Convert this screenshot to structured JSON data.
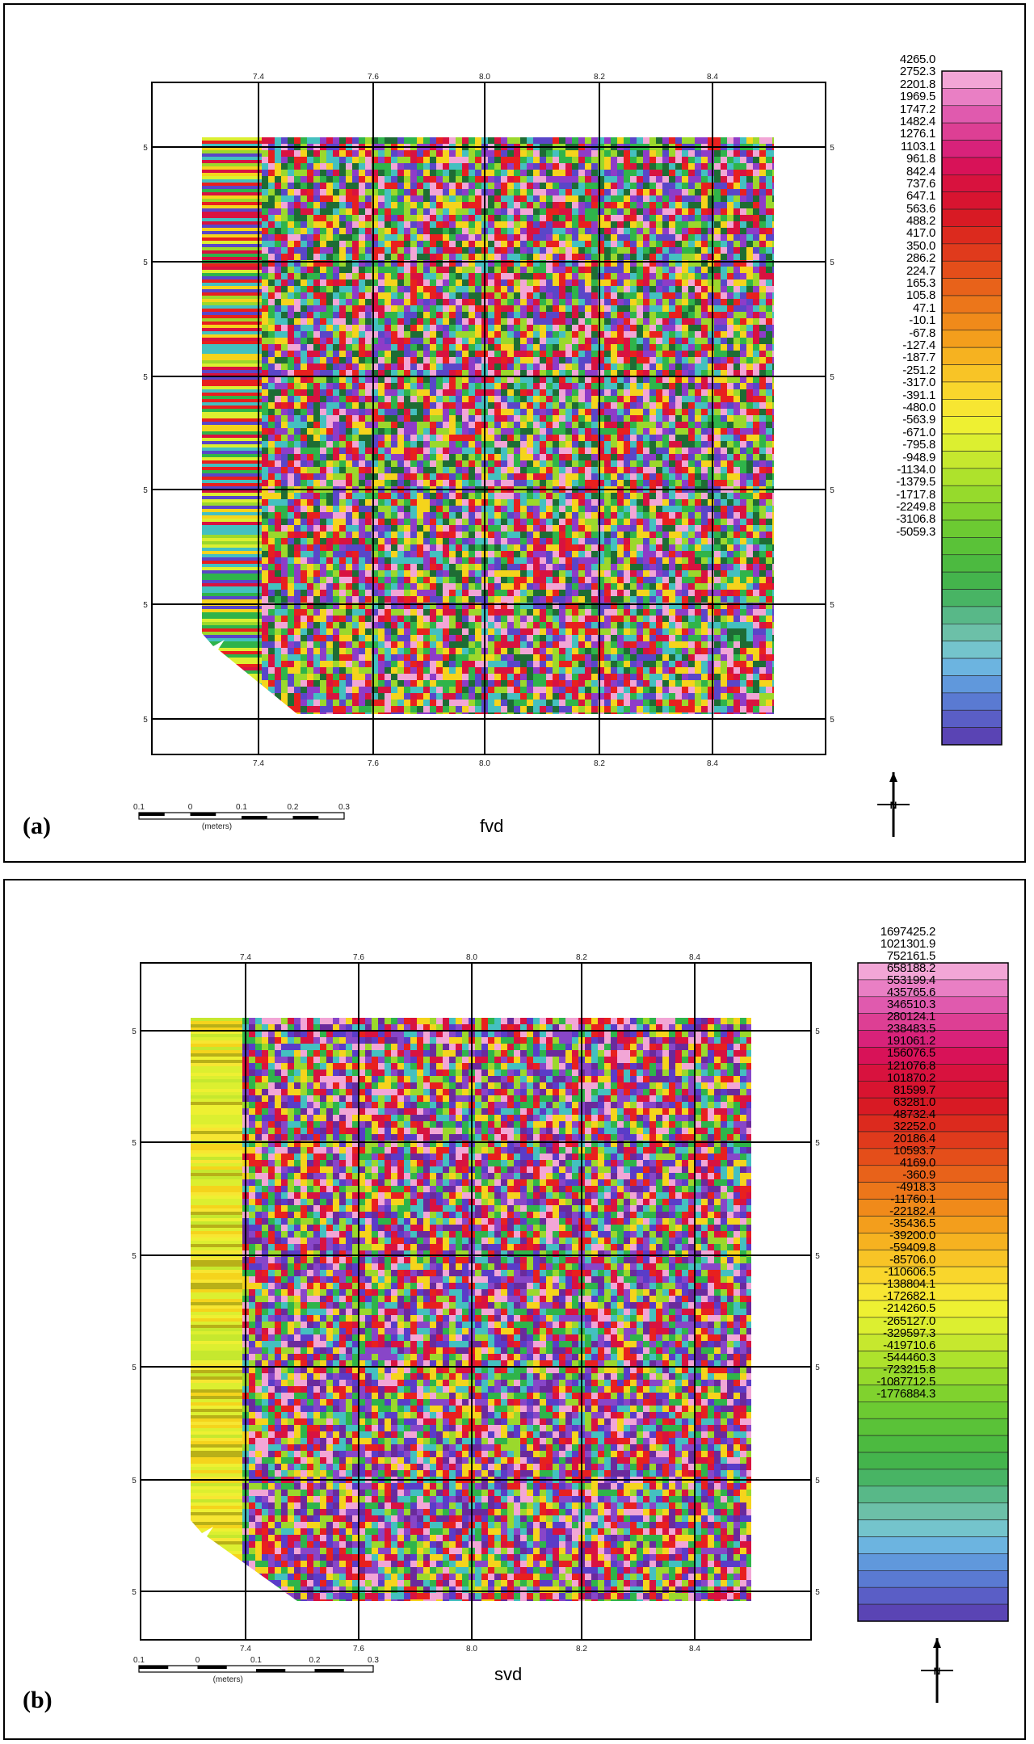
{
  "panels": [
    {
      "tag": "(a)",
      "title": "fvd",
      "colorbar_labels": [
        "4265.0",
        "2752.3",
        "2201.8",
        "1969.5",
        "1747.2",
        "1482.4",
        "1276.1",
        "1103.1",
        "961.8",
        "842.4",
        "737.6",
        "647.1",
        "563.6",
        "488.2",
        "417.0",
        "350.0",
        "286.2",
        "224.7",
        "165.3",
        "105.8",
        "47.1",
        "-10.1",
        "-67.8",
        "-127.4",
        "-187.7",
        "-251.2",
        "-317.0",
        "-391.1",
        "-480.0",
        "-563.9",
        "-671.0",
        "-795.8",
        "-948.9",
        "-1134.0",
        "-1379.5",
        "-1717.8",
        "-2249.8",
        "-3106.8",
        "-5059.3"
      ],
      "x_tick_labels": [
        "7.4",
        "7.6",
        "8.0",
        "8.2",
        "8.4"
      ],
      "y_tick_labels": [
        "5",
        "5",
        "5",
        "5",
        "5",
        "5"
      ],
      "scalebar": {
        "ticks": [
          "0.1",
          "0",
          "0.1",
          "0.2",
          "0.3"
        ],
        "unit": "(meters)"
      },
      "north_arrow": "N"
    },
    {
      "tag": "(b)",
      "title": "svd",
      "colorbar_labels": [
        "1697425.2",
        "1021301.9",
        "752161.5",
        "658188.2",
        "553199.4",
        "435765.6",
        "346510.3",
        "280124.1",
        "238483.5",
        "191061.2",
        "156076.5",
        "121076.8",
        "101870.2",
        "81599.7",
        "63281.0",
        "48732.4",
        "32252.0",
        "20186.4",
        "10593.7",
        "4169.0",
        "-360.9",
        "-4918.3",
        "-11760.1",
        "-22182.4",
        "-35436.5",
        "-39200.0",
        "-59409.8",
        "-85706.0",
        "-110606.5",
        "-138804.1",
        "-172682.1",
        "-214260.5",
        "-265127.0",
        "-329597.3",
        "-419710.6",
        "-544460.3",
        "-723215.8",
        "-1087712.5",
        "-1776884.3"
      ],
      "x_tick_labels": [
        "7.4",
        "7.6",
        "8.0",
        "8.2",
        "8.4"
      ],
      "y_tick_labels": [
        "5",
        "5",
        "5",
        "5",
        "5",
        "5"
      ],
      "scalebar": {
        "ticks": [
          "0.1",
          "0",
          "0.1",
          "0.2",
          "0.3"
        ],
        "unit": "(meters)"
      },
      "north_arrow": "N"
    }
  ],
  "colorbar_colors": [
    "#f2a6d6",
    "#e97fc4",
    "#e05aae",
    "#dd3f94",
    "#d8227a",
    "#d81258",
    "#d8123e",
    "#d81430",
    "#d81a24",
    "#dc2a1e",
    "#e03a1c",
    "#e44e1a",
    "#e8621a",
    "#ec761a",
    "#f08a1a",
    "#f39e1c",
    "#f6b220",
    "#f8c426",
    "#f9d62c",
    "#f7e632",
    "#eef032",
    "#dcef30",
    "#c6e82e",
    "#aee22c",
    "#96da2c",
    "#80d22e",
    "#6cca32",
    "#5ac238",
    "#4cba40",
    "#44b44c",
    "#48b464",
    "#58b888",
    "#6cc0a8",
    "#74c4cc",
    "#6cb4e0",
    "#6098dc",
    "#5a7ad2",
    "#5a5ec6",
    "#5a44b4"
  ],
  "pattern_colors": {
    "fvd": [
      "#d81240",
      "#e8201e",
      "#f5d41c",
      "#9bd82c",
      "#2fb44a",
      "#44c0c0",
      "#5a46c8",
      "#8e3cc8",
      "#f2a6d6",
      "#1e6c34"
    ],
    "svd": [
      "#5a3cc8",
      "#8846c8",
      "#d81240",
      "#f5d41c",
      "#9bd82c",
      "#2fb44a",
      "#44c0c0",
      "#f2a6d6",
      "#e8201e",
      "#6a2a9c"
    ]
  }
}
